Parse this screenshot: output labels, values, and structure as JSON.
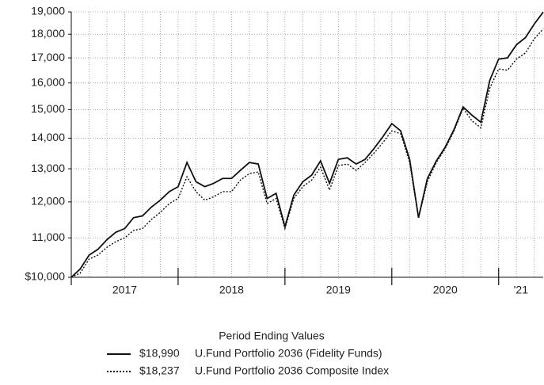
{
  "chart_data": {
    "type": "line",
    "log_y": true,
    "grid": true,
    "x": [
      2017.0,
      2017.083,
      2017.167,
      2017.25,
      2017.333,
      2017.417,
      2017.5,
      2017.583,
      2017.667,
      2017.75,
      2017.833,
      2017.917,
      2018.0,
      2018.083,
      2018.167,
      2018.25,
      2018.333,
      2018.417,
      2018.5,
      2018.583,
      2018.667,
      2018.75,
      2018.833,
      2018.917,
      2019.0,
      2019.083,
      2019.167,
      2019.25,
      2019.333,
      2019.417,
      2019.5,
      2019.583,
      2019.667,
      2019.75,
      2019.833,
      2019.917,
      2020.0,
      2020.083,
      2020.167,
      2020.25,
      2020.333,
      2020.417,
      2020.5,
      2020.583,
      2020.667,
      2020.75,
      2020.833,
      2020.917,
      2021.0,
      2021.083,
      2021.167,
      2021.25,
      2021.333,
      2021.417
    ],
    "xlim": [
      2017.0,
      2021.417
    ],
    "xticks": [
      2018,
      2019,
      2020,
      2021
    ],
    "year_labels": [
      "2017",
      "2018",
      "2019",
      "2020",
      "'21"
    ],
    "ylim": [
      10000,
      19000
    ],
    "yticks": [
      {
        "value": 10000,
        "label": "$10,000"
      },
      {
        "value": 11000,
        "label": "11,000"
      },
      {
        "value": 12000,
        "label": "12,000"
      },
      {
        "value": 13000,
        "label": "13,000"
      },
      {
        "value": 14000,
        "label": "14,000"
      },
      {
        "value": 15000,
        "label": "15,000"
      },
      {
        "value": 16000,
        "label": "16,000"
      },
      {
        "value": 17000,
        "label": "17,000"
      },
      {
        "value": 18000,
        "label": "18,000"
      },
      {
        "value": 19000,
        "label": "19,000"
      }
    ],
    "legend_title": "Period Ending Values",
    "series": [
      {
        "name": "U.Fund Portfolio 2036 (Fidelity Funds)",
        "end_label": "$18,990",
        "color": "#111111",
        "dash": "solid",
        "values": [
          10000,
          10200,
          10550,
          10700,
          10950,
          11150,
          11250,
          11550,
          11600,
          11850,
          12050,
          12300,
          12450,
          13200,
          12600,
          12450,
          12550,
          12700,
          12700,
          12950,
          13200,
          13150,
          12100,
          12250,
          11300,
          12200,
          12600,
          12800,
          13250,
          12550,
          13300,
          13350,
          13150,
          13300,
          13650,
          14050,
          14500,
          14250,
          13300,
          11550,
          12700,
          13250,
          13700,
          14300,
          15100,
          14800,
          14550,
          16100,
          16950,
          17000,
          17550,
          17850,
          18450,
          18990
        ]
      },
      {
        "name": "U.Fund Portfolio 2036 Composite Index",
        "end_label": "$18,237",
        "color": "#111111",
        "dash": "dotted",
        "values": [
          10000,
          10100,
          10450,
          10550,
          10750,
          10900,
          11000,
          11200,
          11250,
          11500,
          11700,
          11950,
          12100,
          12750,
          12300,
          12050,
          12150,
          12300,
          12300,
          12650,
          12850,
          12900,
          11950,
          12100,
          11250,
          12100,
          12450,
          12650,
          13050,
          12350,
          13100,
          13150,
          12950,
          13200,
          13500,
          13850,
          14250,
          14150,
          13200,
          11550,
          12600,
          13200,
          13650,
          14250,
          15050,
          14600,
          14350,
          15800,
          16550,
          16500,
          16950,
          17200,
          17800,
          18237
        ]
      }
    ]
  }
}
